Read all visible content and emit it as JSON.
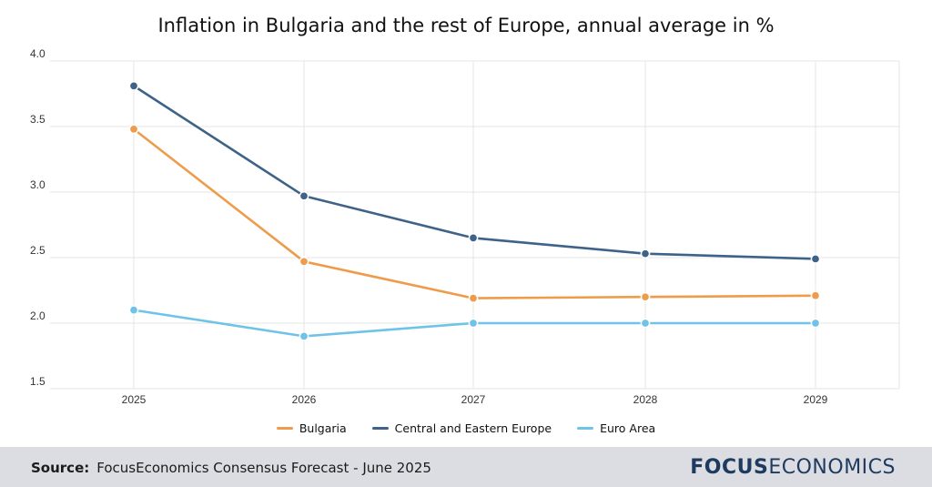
{
  "chart_data": {
    "type": "line",
    "title": "Inflation in Bulgaria and the rest of Europe, annual average in %",
    "x": [
      "2025",
      "2026",
      "2027",
      "2028",
      "2029"
    ],
    "yticks": [
      "4.0",
      "3.5",
      "3.0",
      "2.5",
      "2.0",
      "1.5"
    ],
    "ylim": [
      1.5,
      4.0
    ],
    "grid": true,
    "legend_position": "bottom",
    "series": [
      {
        "name": "Bulgaria",
        "color": "#ee9b4a",
        "values": [
          3.48,
          2.47,
          2.19,
          2.2,
          2.21
        ]
      },
      {
        "name": "Central and Eastern Europe",
        "color": "#3e6288",
        "values": [
          3.81,
          2.97,
          2.65,
          2.53,
          2.49
        ]
      },
      {
        "name": "Euro Area",
        "color": "#70c3e8",
        "values": [
          2.1,
          1.9,
          2.0,
          2.0,
          2.0
        ]
      }
    ]
  },
  "footer": {
    "source_label": "Source:",
    "source_text": "FocusEconomics Consensus Forecast - June 2025",
    "logo_bold": "FOCUS",
    "logo_light": "ECONOMICS"
  }
}
